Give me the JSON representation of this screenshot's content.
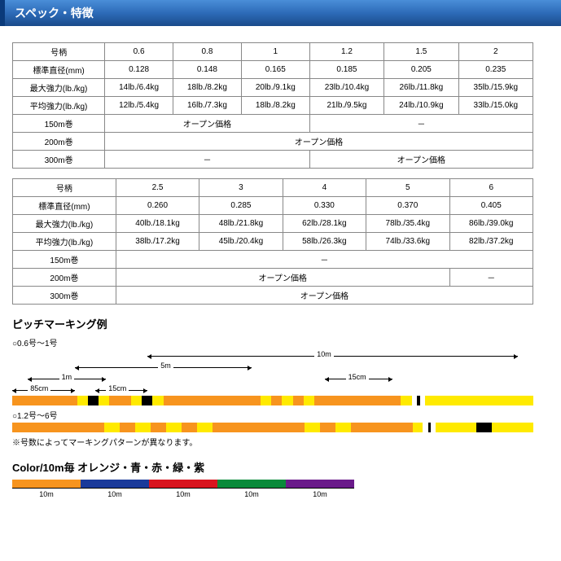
{
  "header": {
    "title": "スペック・特徴"
  },
  "table1": {
    "rows": [
      [
        "号柄",
        "0.6",
        "0.8",
        "1",
        "1.2",
        "1.5",
        "2"
      ],
      [
        "標準直径(mm)",
        "0.128",
        "0.148",
        "0.165",
        "0.185",
        "0.205",
        "0.235"
      ],
      [
        "最大強力(lb./kg)",
        "14lb./6.4kg",
        "18lb./8.2kg",
        "20lb./9.1kg",
        "23lb./10.4kg",
        "26lb./11.8kg",
        "35lb./15.9kg"
      ],
      [
        "平均強力(lb./kg)",
        "12lb./5.4kg",
        "16lb./7.3kg",
        "18lb./8.2kg",
        "21lb./9.5kg",
        "24lb./10.9kg",
        "33lb./15.0kg"
      ]
    ],
    "price_rows": [
      {
        "label": "150m巻",
        "cells": [
          {
            "span": 3,
            "text": "オープン価格"
          },
          {
            "span": 3,
            "text": "－"
          }
        ]
      },
      {
        "label": "200m巻",
        "cells": [
          {
            "span": 6,
            "text": "オープン価格"
          }
        ]
      },
      {
        "label": "300m巻",
        "cells": [
          {
            "span": 3,
            "text": "－"
          },
          {
            "span": 3,
            "text": "オープン価格"
          }
        ]
      }
    ]
  },
  "table2": {
    "rows": [
      [
        "号柄",
        "2.5",
        "3",
        "4",
        "5",
        "6"
      ],
      [
        "標準直径(mm)",
        "0.260",
        "0.285",
        "0.330",
        "0.370",
        "0.405"
      ],
      [
        "最大強力(lb./kg)",
        "40lb./18.1kg",
        "48lb./21.8kg",
        "62lb./28.1kg",
        "78lb./35.4kg",
        "86lb./39.0kg"
      ],
      [
        "平均強力(lb./kg)",
        "38lb./17.2kg",
        "45lb./20.4kg",
        "58lb./26.3kg",
        "74lb./33.6kg",
        "82lb./37.2kg"
      ]
    ],
    "price_rows": [
      {
        "label": "150m巻",
        "cells": [
          {
            "span": 5,
            "text": "－"
          }
        ]
      },
      {
        "label": "200m巻",
        "cells": [
          {
            "span": 4,
            "text": "オープン価格"
          },
          {
            "span": 1,
            "text": "－"
          }
        ]
      },
      {
        "label": "300m巻",
        "cells": [
          {
            "span": 5,
            "text": "オープン価格"
          }
        ]
      }
    ]
  },
  "pitch": {
    "title": "ピッチマーキング例",
    "group1_label": "○0.6号～1号",
    "group2_label": "○1.2号～6号",
    "dims": {
      "d10m": "10m",
      "d5m": "5m",
      "d1m": "1m",
      "d85cm": "85cm",
      "d15cm": "15cm"
    },
    "note": "※号数によってマーキングパターンが異なります。",
    "bar1_segments": [
      {
        "w": 12,
        "c": "#f7941e"
      },
      {
        "w": 2,
        "c": "#ffea00"
      },
      {
        "w": 2,
        "c": "#000"
      },
      {
        "w": 2,
        "c": "#ffea00"
      },
      {
        "w": 4,
        "c": "#f7941e"
      },
      {
        "w": 2,
        "c": "#ffea00"
      },
      {
        "w": 2,
        "c": "#000"
      },
      {
        "w": 2,
        "c": "#ffea00"
      },
      {
        "w": 18,
        "c": "#f7941e"
      },
      {
        "w": 2,
        "c": "#ffea00"
      },
      {
        "w": 2,
        "c": "#f7941e"
      },
      {
        "w": 2,
        "c": "#ffea00"
      },
      {
        "w": 2,
        "c": "#f7941e"
      },
      {
        "w": 2,
        "c": "#ffea00"
      },
      {
        "w": 16,
        "c": "#f7941e"
      },
      {
        "w": 2,
        "c": "#ffea00"
      },
      {
        "w": 1,
        "c": "#fff"
      },
      {
        "w": 0.5,
        "c": "#000"
      },
      {
        "w": 1,
        "c": "#fff"
      },
      {
        "w": 20,
        "c": "#ffea00"
      }
    ],
    "bar2_segments": [
      {
        "w": 18,
        "c": "#f7941e"
      },
      {
        "w": 3,
        "c": "#ffea00"
      },
      {
        "w": 3,
        "c": "#f7941e"
      },
      {
        "w": 3,
        "c": "#ffea00"
      },
      {
        "w": 3,
        "c": "#f7941e"
      },
      {
        "w": 3,
        "c": "#ffea00"
      },
      {
        "w": 3,
        "c": "#f7941e"
      },
      {
        "w": 3,
        "c": "#ffea00"
      },
      {
        "w": 18,
        "c": "#f7941e"
      },
      {
        "w": 3,
        "c": "#ffea00"
      },
      {
        "w": 3,
        "c": "#f7941e"
      },
      {
        "w": 3,
        "c": "#ffea00"
      },
      {
        "w": 12,
        "c": "#f7941e"
      },
      {
        "w": 2,
        "c": "#ffea00"
      },
      {
        "w": 1,
        "c": "#fff"
      },
      {
        "w": 0.5,
        "c": "#000"
      },
      {
        "w": 1,
        "c": "#fff"
      },
      {
        "w": 8,
        "c": "#ffea00"
      },
      {
        "w": 3,
        "c": "#000"
      },
      {
        "w": 8,
        "c": "#ffea00"
      }
    ]
  },
  "colorbar": {
    "title": "Color/10m毎 オレンジ・青・赤・緑・紫",
    "colors": [
      "#f7941e",
      "#1a3a9a",
      "#d8141e",
      "#0a8a3a",
      "#6a1a8a"
    ],
    "label": "10m"
  }
}
